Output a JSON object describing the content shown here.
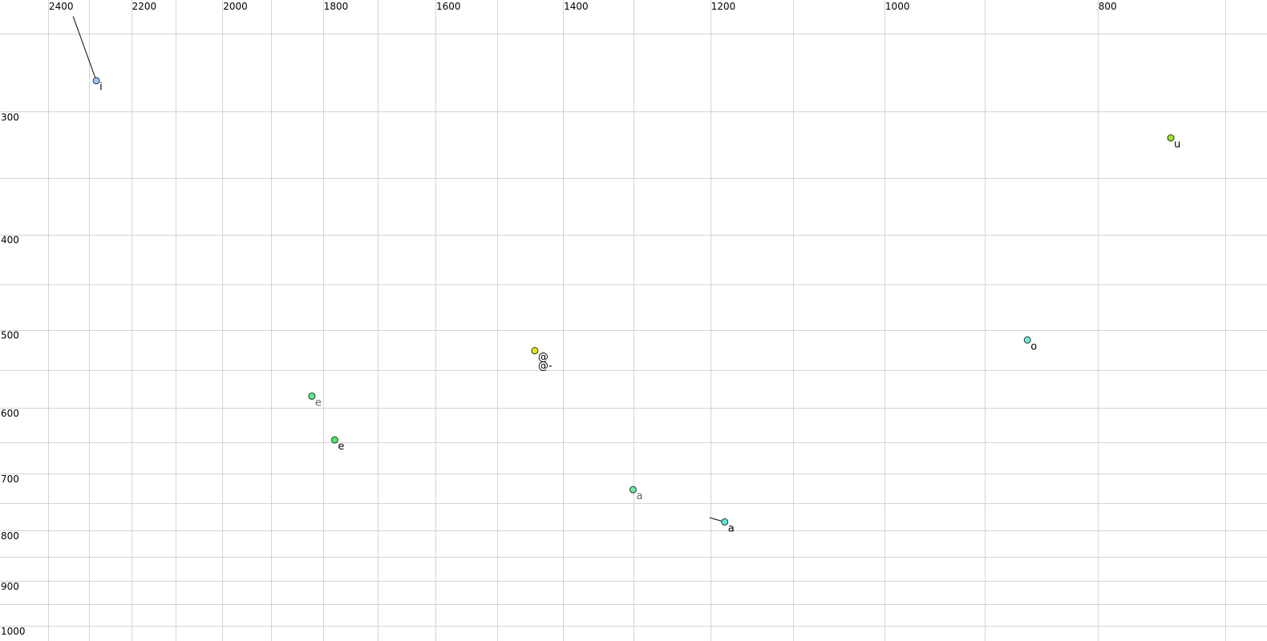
{
  "chart_data": {
    "type": "scatter",
    "title": "",
    "xlabel": "",
    "ylabel": "",
    "x_scale": "log",
    "y_scale": "log",
    "x_reversed": true,
    "xlim": [
      2524,
      670
    ],
    "ylim": [
      231,
      1036
    ],
    "grid": true,
    "x_gridlines": [
      2400,
      2300,
      2200,
      2100,
      2000,
      1900,
      1800,
      1700,
      1600,
      1500,
      1400,
      1300,
      1200,
      1100,
      1000,
      900,
      800,
      700
    ],
    "y_gridlines": [
      250,
      300,
      350,
      400,
      450,
      500,
      550,
      600,
      650,
      700,
      750,
      800,
      850,
      900,
      950,
      1000
    ],
    "x_tick_labels": [
      "2400",
      "2200",
      "2000",
      "1800",
      "1600",
      "1400",
      "1200",
      "1000",
      "800"
    ],
    "y_tick_labels": [
      "300",
      "400",
      "500",
      "600",
      "700",
      "800",
      "900",
      "1000"
    ],
    "points": [
      {
        "label": "i",
        "x": 2282,
        "y": 279,
        "color": "#99c4ff",
        "label_color": "#000000",
        "trail": {
          "x": 2338,
          "y": 240
        }
      },
      {
        "label": "u",
        "x": 741,
        "y": 319,
        "color": "#99e622",
        "label_color": "#000000"
      },
      {
        "label": "o",
        "x": 861,
        "y": 512,
        "color": "#66eedd",
        "label_color": "#000000"
      },
      {
        "label": "@",
        "x": 1442,
        "y": 525,
        "color": "#ddee00",
        "label_color": "#000000",
        "extra_label": "@-"
      },
      {
        "label": "e",
        "x": 1821,
        "y": 584,
        "color": "#55ee88",
        "label_color": "#666677"
      },
      {
        "label": "e",
        "x": 1778,
        "y": 647,
        "color": "#44ee66",
        "label_color": "#000000"
      },
      {
        "label": "a",
        "x": 1301,
        "y": 727,
        "color": "#66ee99",
        "label_color": "#666677"
      },
      {
        "label": "a",
        "x": 1182,
        "y": 784,
        "color": "#55eedd",
        "label_color": "#000000",
        "trail": {
          "x": 1201,
          "y": 776
        }
      }
    ]
  }
}
